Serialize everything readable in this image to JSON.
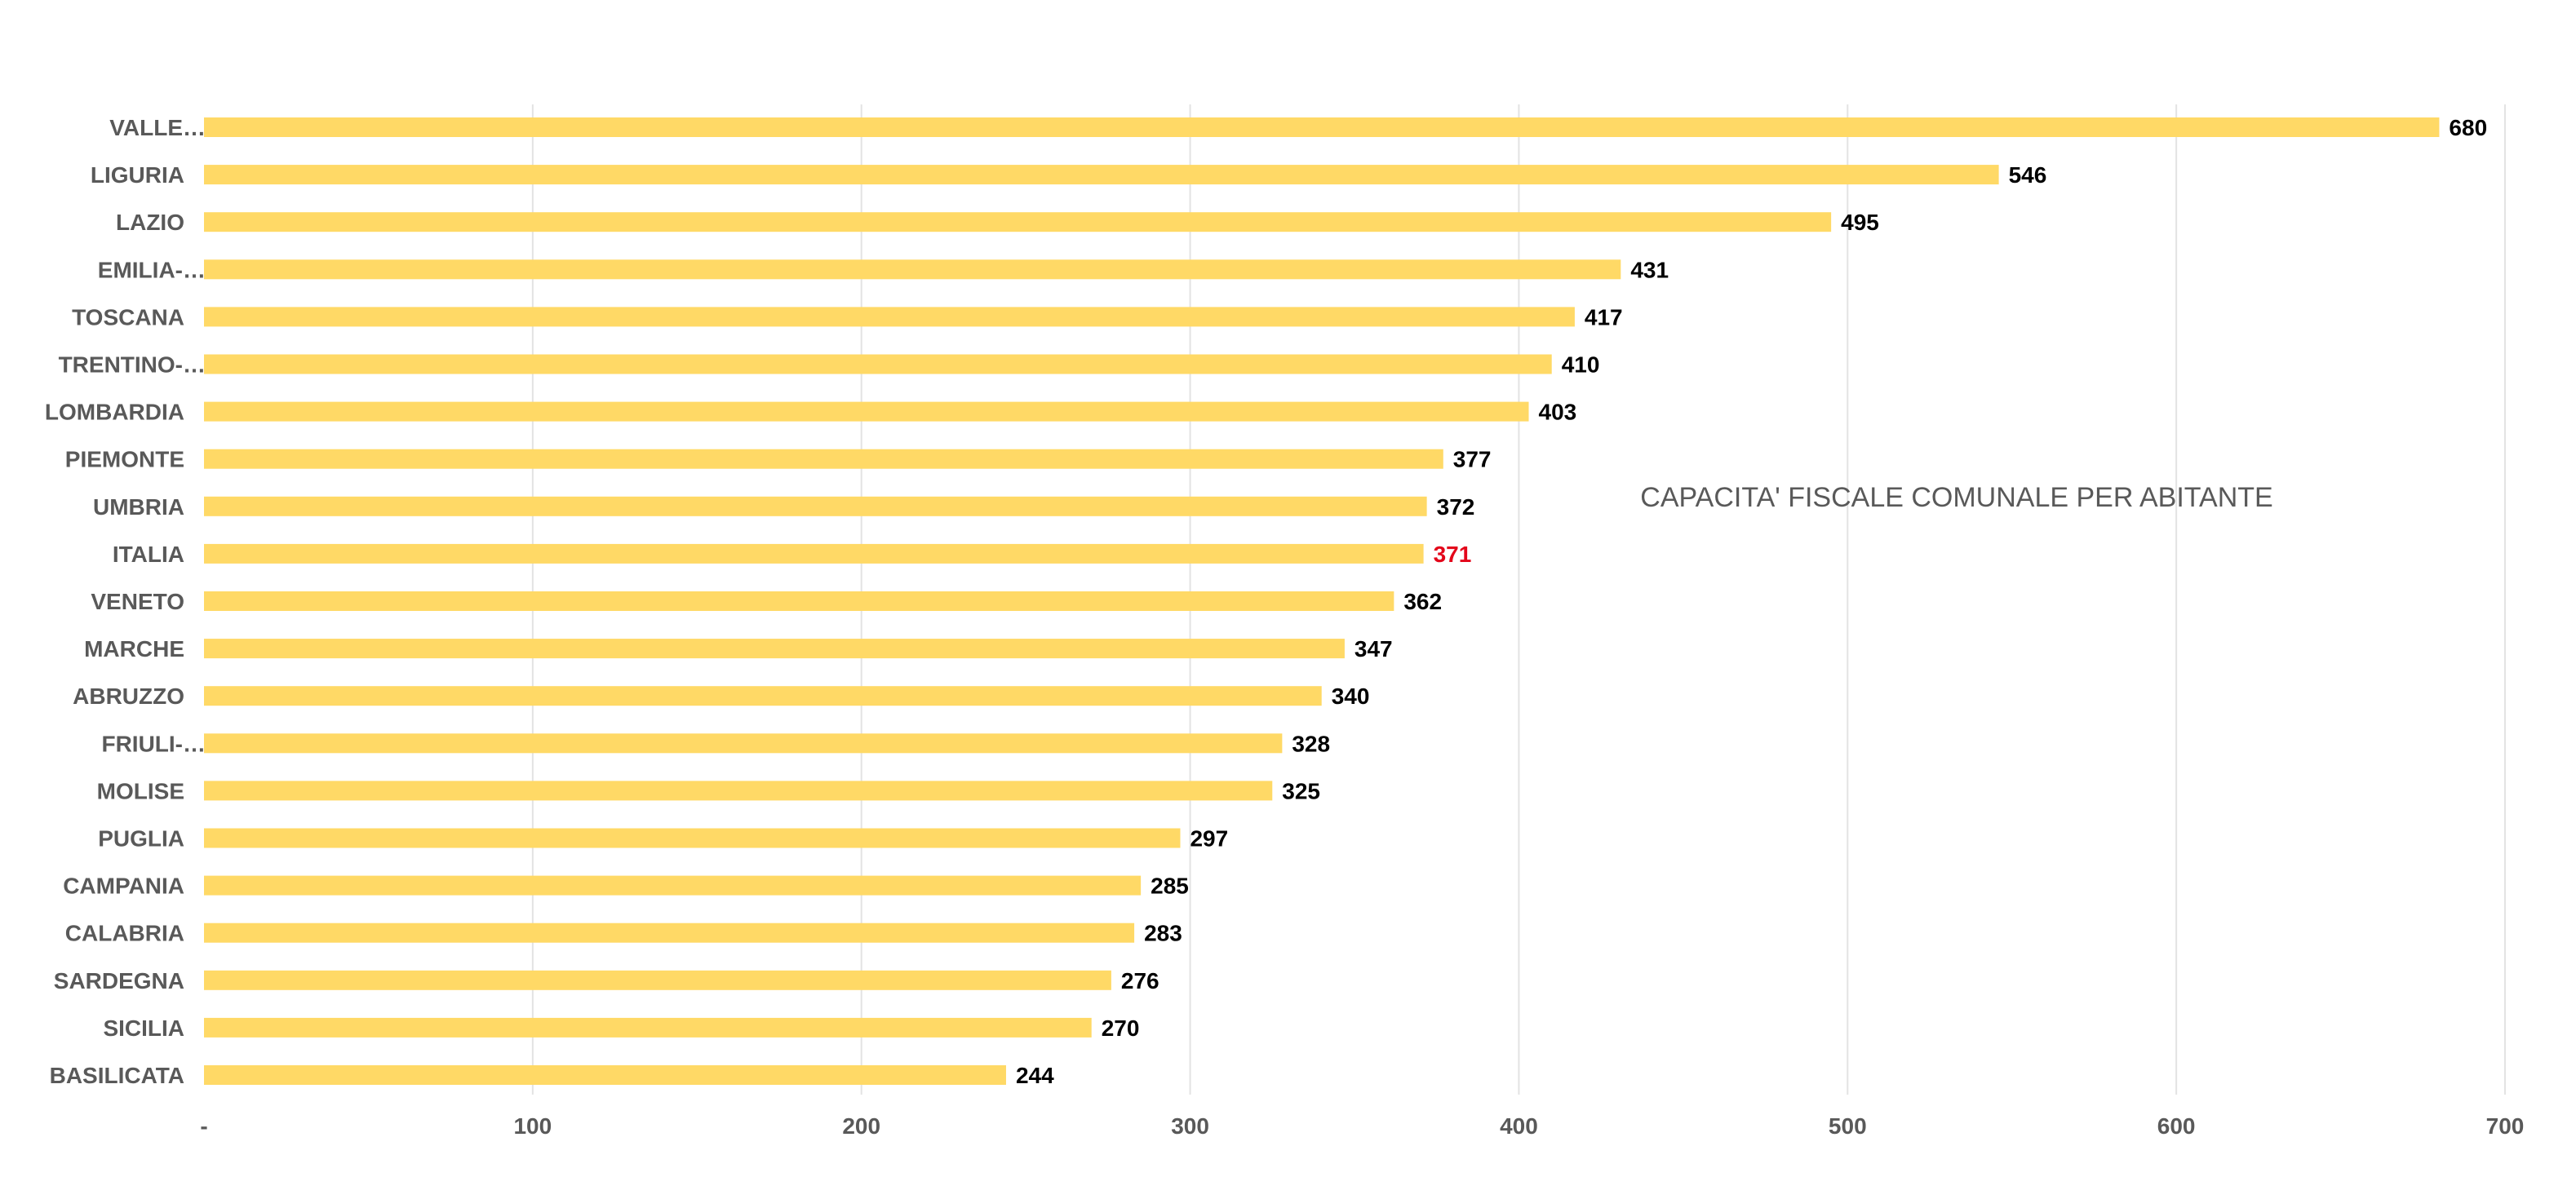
{
  "chart_data": {
    "type": "bar",
    "orientation": "horizontal",
    "title": "CAPACITA' FISCALE COMUNALE PER ABITANTE",
    "categories": [
      "VALLE…",
      "LIGURIA",
      "LAZIO",
      "EMILIA-…",
      "TOSCANA",
      "TRENTINO-…",
      "LOMBARDIA",
      "PIEMONTE",
      "UMBRIA",
      "ITALIA",
      "VENETO",
      "MARCHE",
      "ABRUZZO",
      "FRIULI-…",
      "MOLISE",
      "PUGLIA",
      "CAMPANIA",
      "CALABRIA",
      "SARDEGNA",
      "SICILIA",
      "BASILICATA"
    ],
    "values": [
      680,
      546,
      495,
      431,
      417,
      410,
      403,
      377,
      372,
      371,
      362,
      347,
      340,
      328,
      325,
      297,
      285,
      283,
      276,
      270,
      244
    ],
    "highlight_category": "ITALIA",
    "xlim": [
      0,
      700
    ],
    "x_ticks": [
      0,
      100,
      200,
      300,
      400,
      500,
      600,
      700
    ],
    "x_tick_labels": [
      "-",
      "100",
      "200",
      "300",
      "400",
      "500",
      "600",
      "700"
    ],
    "grid": "vertical",
    "legend": "none",
    "colors": {
      "bar": "#ffd966",
      "highlight_label": "#e3061a",
      "label": "#000000",
      "axis_text": "#595959",
      "grid": "#e3e3e3"
    }
  }
}
